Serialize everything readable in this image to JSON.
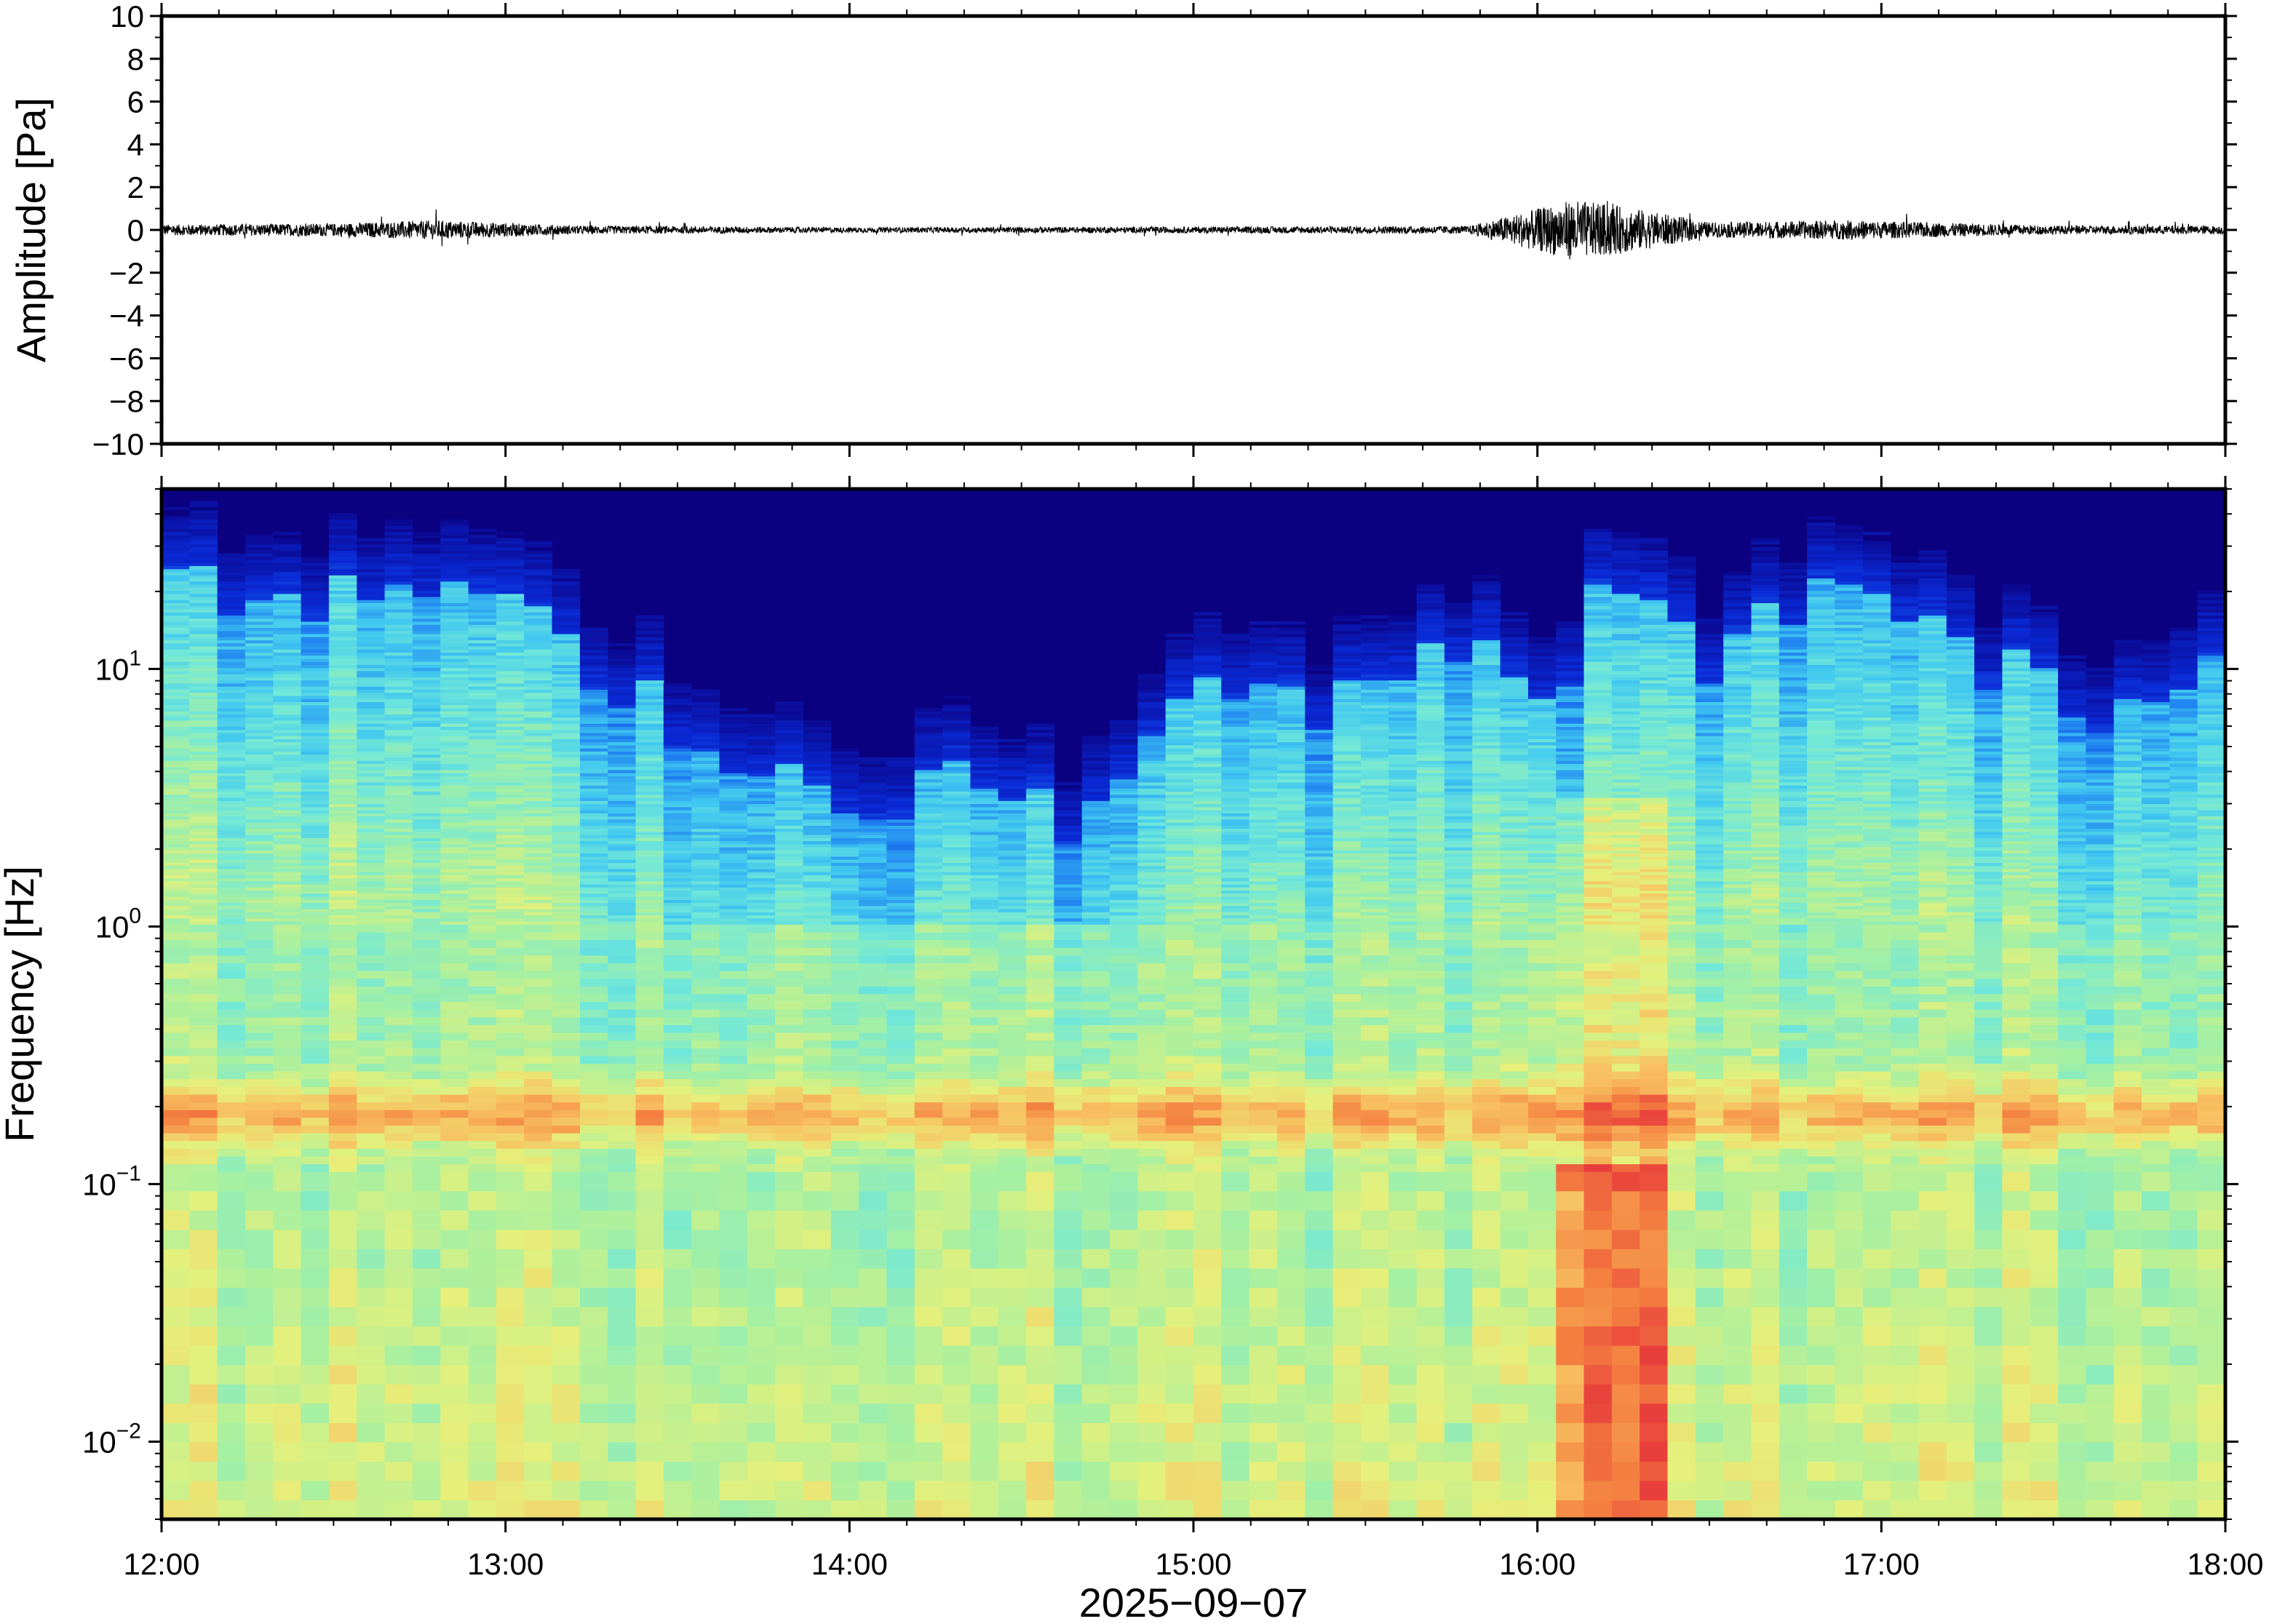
{
  "chart_data": [
    {
      "type": "line",
      "panel": "waveform",
      "ylabel": "Amplitude [Pa]",
      "ylim": [
        -10,
        10
      ],
      "yticks": [
        10,
        8,
        6,
        4,
        2,
        0,
        -2,
        -4,
        -6,
        -8,
        -10
      ],
      "ytick_labels": [
        "10",
        "8",
        "6",
        "4",
        "2",
        "0",
        "−2",
        "−4",
        "−6",
        "−8",
        "−10"
      ],
      "x_range_hours": [
        12,
        18
      ],
      "series": [
        {
          "color": "#000000",
          "description_points": [
            {
              "t": 12.0,
              "amp": 0.25
            },
            {
              "t": 12.5,
              "amp": 0.3
            },
            {
              "t": 12.8,
              "amp": 0.45
            },
            {
              "t": 13.2,
              "amp": 0.2
            },
            {
              "t": 14.0,
              "amp": 0.12
            },
            {
              "t": 15.0,
              "amp": 0.15
            },
            {
              "t": 15.8,
              "amp": 0.18
            },
            {
              "t": 16.1,
              "amp": 1.4
            },
            {
              "t": 16.25,
              "amp": 1.1
            },
            {
              "t": 16.5,
              "amp": 0.35
            },
            {
              "t": 16.9,
              "amp": 0.45
            },
            {
              "t": 17.5,
              "amp": 0.2
            },
            {
              "t": 18.0,
              "amp": 0.2
            }
          ]
        }
      ]
    },
    {
      "type": "heatmap",
      "panel": "spectrogram",
      "ylabel": "Frequency [Hz]",
      "xlabel": "2025−09−07",
      "yscale": "log",
      "ylim": [
        0.005,
        50
      ],
      "yticks": [
        {
          "value": 10,
          "base": "10",
          "exp": "1"
        },
        {
          "value": 1,
          "base": "10",
          "exp": "0"
        },
        {
          "value": 0.1,
          "base": "10",
          "exp": "−1"
        },
        {
          "value": 0.01,
          "base": "10",
          "exp": "−2"
        }
      ],
      "xlim_hours": [
        12,
        18
      ],
      "xticks": [
        "12:00",
        "13:00",
        "14:00",
        "15:00",
        "16:00",
        "17:00",
        "18:00"
      ],
      "colormap": [
        "#0b0080",
        "#0a2ad6",
        "#1e7ef0",
        "#40c8f0",
        "#72e8d8",
        "#a8f0a0",
        "#e6f07a",
        "#f8c060",
        "#f48040",
        "#e83c3c"
      ],
      "microbarom_band_hz": [
        0.16,
        0.22
      ],
      "event": {
        "start": "16:05",
        "end": "16:25",
        "freq_range_hz": [
          0.005,
          0.12
        ]
      },
      "upper_energy_limit_hz_by_hour": [
        {
          "t": 12.0,
          "f": 20
        },
        {
          "t": 12.5,
          "f": 18
        },
        {
          "t": 12.8,
          "f": 22
        },
        {
          "t": 13.3,
          "f": 10
        },
        {
          "t": 13.6,
          "f": 5
        },
        {
          "t": 14.0,
          "f": 3
        },
        {
          "t": 14.3,
          "f": 4
        },
        {
          "t": 14.6,
          "f": 2.5
        },
        {
          "t": 15.1,
          "f": 9
        },
        {
          "t": 15.5,
          "f": 7
        },
        {
          "t": 15.8,
          "f": 14
        },
        {
          "t": 16.0,
          "f": 6
        },
        {
          "t": 16.2,
          "f": 22
        },
        {
          "t": 16.5,
          "f": 10
        },
        {
          "t": 16.85,
          "f": 24
        },
        {
          "t": 17.3,
          "f": 10
        },
        {
          "t": 17.7,
          "f": 7
        },
        {
          "t": 18.0,
          "f": 12
        }
      ]
    }
  ]
}
